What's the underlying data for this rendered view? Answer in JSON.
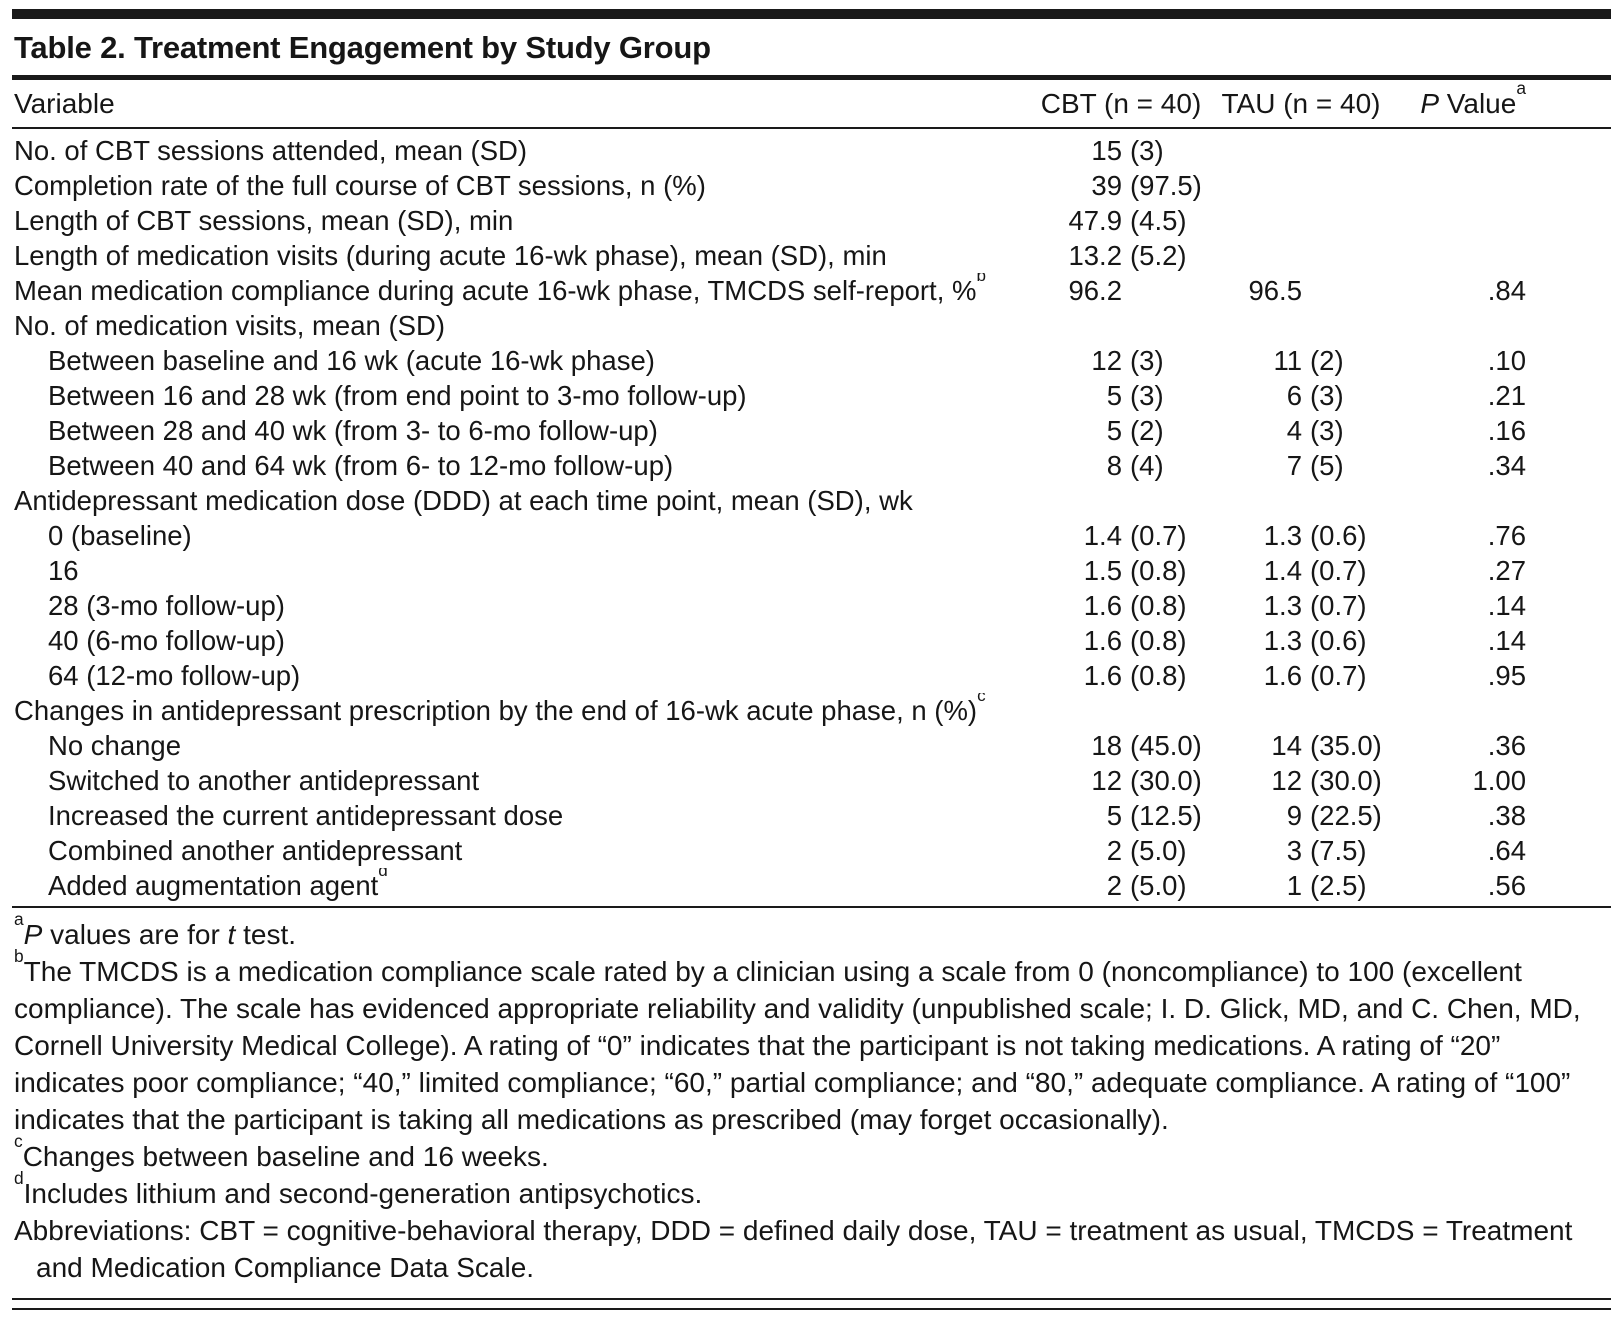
{
  "table": {
    "title": "Table 2. Treatment Engagement by Study Group",
    "columns": {
      "variable": "Variable",
      "cbt": "CBT (n = 40)",
      "tau": "TAU (n = 40)",
      "pvalue_segments": [
        {
          "t": "P",
          "i": true
        },
        {
          "t": " Value"
        },
        {
          "t": "a",
          "sup": true
        }
      ]
    },
    "rows": [
      {
        "label": "No. of CBT sessions attended, mean (SD)",
        "indent": 0,
        "cbt": "15 (3)",
        "tau": "",
        "p": ""
      },
      {
        "label": "Completion rate of the full course of CBT sessions, n (%)",
        "indent": 0,
        "cbt": "39 (97.5)",
        "tau": "",
        "p": ""
      },
      {
        "label": "Length of CBT sessions, mean (SD), min",
        "indent": 0,
        "cbt": "47.9 (4.5)",
        "tau": "",
        "p": ""
      },
      {
        "label": "Length of medication visits (during acute 16-wk phase), mean (SD), min",
        "indent": 0,
        "cbt": "13.2 (5.2)",
        "tau": "",
        "p": ""
      },
      {
        "label": "Mean medication compliance during acute 16-wk phase, TMCDS self-report, %",
        "sup": "b",
        "indent": 0,
        "cbt": "96.2",
        "tau": "96.5",
        "p": ".84"
      },
      {
        "label": "No. of medication visits, mean (SD)",
        "indent": 0,
        "cbt": "",
        "tau": "",
        "p": ""
      },
      {
        "label": "Between baseline and 16 wk (acute 16-wk phase)",
        "indent": 1,
        "cbt": "12 (3)",
        "tau": "11 (2)",
        "p": ".10"
      },
      {
        "label": "Between 16 and 28 wk (from end point to 3-mo follow-up)",
        "indent": 1,
        "cbt": "5 (3)",
        "tau": "6 (3)",
        "p": ".21"
      },
      {
        "label": "Between 28 and 40 wk (from 3- to 6-mo follow-up)",
        "indent": 1,
        "cbt": "5 (2)",
        "tau": "4 (3)",
        "p": ".16"
      },
      {
        "label": "Between 40 and 64 wk (from 6- to 12-mo follow-up)",
        "indent": 1,
        "cbt": "8 (4)",
        "tau": "7 (5)",
        "p": ".34"
      },
      {
        "label": "Antidepressant medication dose (DDD) at each time point, mean (SD), wk",
        "indent": 0,
        "cbt": "",
        "tau": "",
        "p": ""
      },
      {
        "label": "0 (baseline)",
        "indent": 1,
        "cbt": "1.4 (0.7)",
        "tau": "1.3 (0.6)",
        "p": ".76"
      },
      {
        "label": "16",
        "indent": 1,
        "cbt": "1.5 (0.8)",
        "tau": "1.4 (0.7)",
        "p": ".27"
      },
      {
        "label": "28 (3-mo follow-up)",
        "indent": 1,
        "cbt": "1.6 (0.8)",
        "tau": "1.3 (0.7)",
        "p": ".14"
      },
      {
        "label": "40 (6-mo follow-up)",
        "indent": 1,
        "cbt": "1.6 (0.8)",
        "tau": "1.3 (0.6)",
        "p": ".14"
      },
      {
        "label": "64 (12-mo follow-up)",
        "indent": 1,
        "cbt": "1.6 (0.8)",
        "tau": "1.6 (0.7)",
        "p": ".95"
      },
      {
        "label": "Changes in antidepressant prescription by the end of 16-wk acute phase, n (%)",
        "sup": "c",
        "indent": 0,
        "cbt": "",
        "tau": "",
        "p": ""
      },
      {
        "label": "No change",
        "indent": 1,
        "cbt": "18 (45.0)",
        "tau": "14 (35.0)",
        "p": ".36"
      },
      {
        "label": "Switched to another antidepressant",
        "indent": 1,
        "cbt": "12 (30.0)",
        "tau": "12 (30.0)",
        "p": "1.00"
      },
      {
        "label": "Increased the current antidepressant dose",
        "indent": 1,
        "cbt": "5 (12.5)",
        "tau": "9 (22.5)",
        "p": ".38"
      },
      {
        "label": "Combined another antidepressant",
        "indent": 1,
        "cbt": "2 (5.0)",
        "tau": "3 (7.5)",
        "p": ".64"
      },
      {
        "label": "Added augmentation agent",
        "sup": "d",
        "indent": 1,
        "cbt": "2 (5.0)",
        "tau": "1 (2.5)",
        "p": ".56"
      }
    ]
  },
  "footnotes": [
    {
      "name": "footnote-a",
      "segments": [
        {
          "t": "a",
          "sup": true
        },
        {
          "t": "P",
          "i": true
        },
        {
          "t": " values are for "
        },
        {
          "t": "t",
          "i": true
        },
        {
          "t": " test."
        }
      ]
    },
    {
      "name": "footnote-b",
      "segments": [
        {
          "t": "b",
          "sup": true
        },
        {
          "t": "The TMCDS is a medication compliance scale rated by a clinician using a scale from 0 (noncompliance) to 100 (excellent compliance). The scale has evidenced appropriate reliability and validity (unpublished scale; I. D. Glick, MD, and C. Chen, MD, Cornell University Medical College). A rating of “0” indicates that the participant is not taking medications. A rating of “20” indicates poor compliance; “40,” limited compliance; “60,” partial compliance; and “80,” adequate compliance. A rating of “100” indicates that the participant is taking all medications as prescribed (may forget occasionally)."
        }
      ]
    },
    {
      "name": "footnote-c",
      "segments": [
        {
          "t": "c",
          "sup": true
        },
        {
          "t": "Changes between baseline and 16 weeks."
        }
      ]
    },
    {
      "name": "footnote-d",
      "segments": [
        {
          "t": "d",
          "sup": true
        },
        {
          "t": "Includes lithium and second-generation antipsychotics."
        }
      ]
    },
    {
      "name": "abbreviations-note",
      "hang": true,
      "segments": [
        {
          "t": "Abbreviations: CBT = cognitive-behavioral therapy, DDD = defined daily dose, TAU = treatment as usual, TMCDS = Treatment and Medication Compliance Data Scale."
        }
      ]
    }
  ]
}
